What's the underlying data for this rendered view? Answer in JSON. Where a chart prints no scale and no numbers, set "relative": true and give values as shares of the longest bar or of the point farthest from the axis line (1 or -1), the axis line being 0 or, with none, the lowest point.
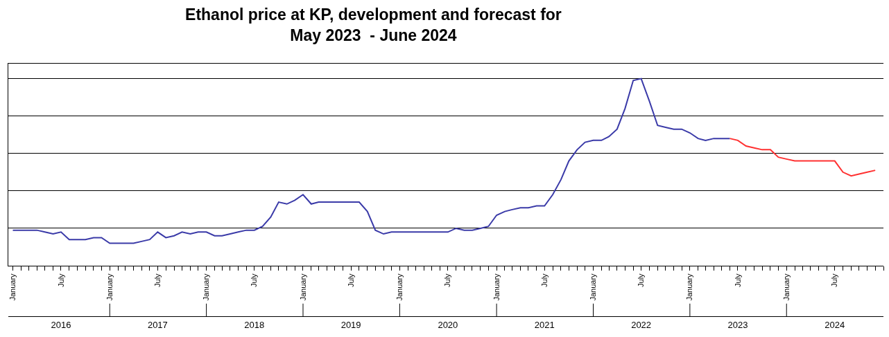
{
  "chart_data": {
    "type": "line",
    "title": "Ethanol price at KP, development and forecast for May 2023  - June 2024",
    "relative": true,
    "grid": "y",
    "marker": "none",
    "line_style": "solid",
    "xlim": [
      "2015-12-15",
      "2025-01-01"
    ],
    "xticks": [
      {
        "value": "2016-01-01",
        "label": "January"
      },
      {
        "value": "2016-07-01",
        "label": "July"
      },
      {
        "value": "2017-01-01",
        "label": "January"
      },
      {
        "value": "2017-07-01",
        "label": "July"
      },
      {
        "value": "2018-01-01",
        "label": "January"
      },
      {
        "value": "2018-07-01",
        "label": "July"
      },
      {
        "value": "2019-01-01",
        "label": "January"
      },
      {
        "value": "2019-07-01",
        "label": "July"
      },
      {
        "value": "2020-01-01",
        "label": "January"
      },
      {
        "value": "2020-07-01",
        "label": "July"
      },
      {
        "value": "2021-01-01",
        "label": "January"
      },
      {
        "value": "2021-07-01",
        "label": "July"
      },
      {
        "value": "2022-01-01",
        "label": "January"
      },
      {
        "value": "2022-07-01",
        "label": "July"
      },
      {
        "value": "2023-01-01",
        "label": "January"
      },
      {
        "value": "2023-07-01",
        "label": "July"
      },
      {
        "value": "2024-01-01",
        "label": "January"
      },
      {
        "value": "2024-07-01",
        "label": "July"
      }
    ],
    "x2lim": [
      "2015-12-15",
      "2025-01-01"
    ],
    "x2ticks": [
      {
        "value": "2016-07-01",
        "label": "2016"
      },
      {
        "value": "2017-07-01",
        "label": "2017"
      },
      {
        "value": "2018-07-01",
        "label": "2018"
      },
      {
        "value": "2019-07-01",
        "label": "2019"
      },
      {
        "value": "2020-07-01",
        "label": "2020"
      },
      {
        "value": "2021-07-01",
        "label": "2021"
      },
      {
        "value": "2022-07-01",
        "label": "2022"
      },
      {
        "value": "2023-07-01",
        "label": "2023"
      },
      {
        "value": "2024-07-01",
        "label": "2024"
      }
    ],
    "series": [
      {
        "color": "#3a3aa8",
        "x": [
          "2016-01",
          "2016-02",
          "2016-03",
          "2016-04",
          "2016-05",
          "2016-06",
          "2016-07",
          "2016-08",
          "2016-09",
          "2016-10",
          "2016-11",
          "2016-12",
          "2017-01",
          "2017-02",
          "2017-03",
          "2017-04",
          "2017-05",
          "2017-06",
          "2017-07",
          "2017-08",
          "2017-09",
          "2017-10",
          "2017-11",
          "2017-12",
          "2018-01",
          "2018-02",
          "2018-03",
          "2018-04",
          "2018-05",
          "2018-06",
          "2018-07",
          "2018-08",
          "2018-09",
          "2018-10",
          "2018-11",
          "2018-12",
          "2019-01",
          "2019-02",
          "2019-03",
          "2019-04",
          "2019-05",
          "2019-06",
          "2019-07",
          "2019-08",
          "2019-09",
          "2019-10",
          "2019-11",
          "2019-12",
          "2020-01",
          "2020-02",
          "2020-03",
          "2020-04",
          "2020-05",
          "2020-06",
          "2020-07",
          "2020-08",
          "2020-09",
          "2020-10",
          "2020-11",
          "2020-12",
          "2021-01",
          "2021-02",
          "2021-03",
          "2021-04",
          "2021-05",
          "2021-06",
          "2021-07",
          "2021-08",
          "2021-09",
          "2021-10",
          "2021-11",
          "2021-12",
          "2022-01",
          "2022-02",
          "2022-03",
          "2022-04",
          "2022-05",
          "2022-06",
          "2022-07",
          "2022-08",
          "2022-09",
          "2022-10",
          "2022-11",
          "2022-12",
          "2023-01",
          "2023-02",
          "2023-03",
          "2023-04",
          "2023-05",
          "2023-06"
        ],
        "values": [
          0.19,
          0.19,
          0.19,
          0.19,
          0.18,
          0.17,
          0.18,
          0.14,
          0.14,
          0.14,
          0.15,
          0.15,
          0.12,
          0.12,
          0.12,
          0.12,
          0.13,
          0.14,
          0.18,
          0.15,
          0.16,
          0.18,
          0.17,
          0.18,
          0.18,
          0.16,
          0.16,
          0.17,
          0.18,
          0.19,
          0.19,
          0.21,
          0.26,
          0.34,
          0.33,
          0.35,
          0.38,
          0.33,
          0.34,
          0.34,
          0.34,
          0.34,
          0.34,
          0.34,
          0.29,
          0.19,
          0.17,
          0.18,
          0.18,
          0.18,
          0.18,
          0.18,
          0.18,
          0.18,
          0.18,
          0.2,
          0.19,
          0.19,
          0.2,
          0.21,
          0.27,
          0.29,
          0.3,
          0.31,
          0.31,
          0.32,
          0.32,
          0.38,
          0.46,
          0.56,
          0.62,
          0.66,
          0.67,
          0.67,
          0.69,
          0.73,
          0.84,
          0.99,
          1,
          0.88,
          0.75,
          0.74,
          0.73,
          0.73,
          0.71,
          0.68,
          0.67,
          0.68,
          0.68,
          0.68
        ]
      },
      {
        "color": "#ff3030",
        "x": [
          "2023-06",
          "2023-07",
          "2023-08",
          "2023-09",
          "2023-10",
          "2023-11",
          "2023-12",
          "2024-01",
          "2024-02",
          "2024-03",
          "2024-04",
          "2024-05",
          "2024-06",
          "2024-07",
          "2024-08",
          "2024-09",
          "2024-10",
          "2024-11",
          "2024-12"
        ],
        "values": [
          0.68,
          0.67,
          0.64,
          0.63,
          0.62,
          0.62,
          0.58,
          0.57,
          0.56,
          0.56,
          0.56,
          0.56,
          0.56,
          0.56,
          0.5,
          0.48,
          0.49,
          0.5,
          0.51
        ]
      }
    ]
  }
}
